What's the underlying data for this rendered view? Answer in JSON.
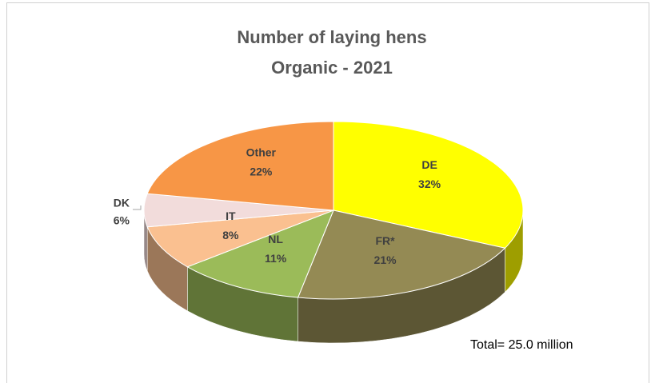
{
  "chart_data": {
    "type": "pie",
    "title": [
      "Number of laying hens",
      "Organic - 2021"
    ],
    "categories": [
      "DE",
      "FR*",
      "NL",
      "IT",
      "DK",
      "Other"
    ],
    "values": [
      32,
      21,
      11,
      8,
      6,
      22
    ],
    "value_labels": [
      "32%",
      "21%",
      "11%",
      "8%",
      "6%",
      "22%"
    ],
    "colors": [
      "#ffff00",
      "#948a54",
      "#9bbb59",
      "#fac090",
      "#f2dcdb",
      "#f79646"
    ],
    "annotation": "Total= 25.0 million"
  }
}
